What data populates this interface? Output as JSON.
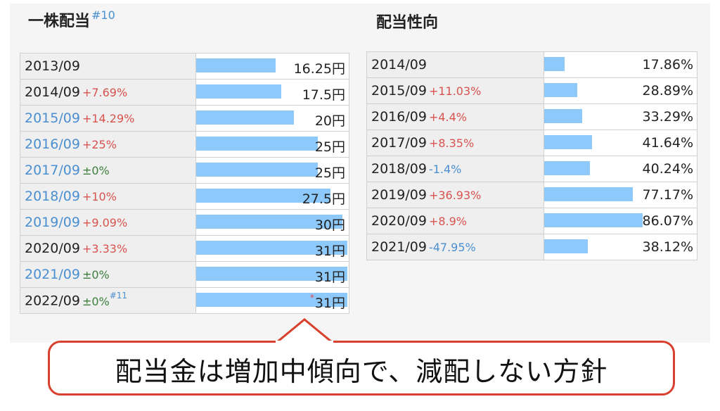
{
  "left": {
    "title": "一株配当",
    "title_note": "#10",
    "rows": [
      {
        "year": "2013/09",
        "change": "",
        "change_type": "",
        "year_link": false,
        "note": "",
        "value": 16.25,
        "value_label": "16.25円",
        "marker": ""
      },
      {
        "year": "2014/09",
        "change": "+7.69%",
        "change_type": "up",
        "year_link": false,
        "note": "",
        "value": 17.5,
        "value_label": "17.5円",
        "marker": ""
      },
      {
        "year": "2015/09",
        "change": "+14.29%",
        "change_type": "up",
        "year_link": true,
        "note": "",
        "value": 20,
        "value_label": "20円",
        "marker": ""
      },
      {
        "year": "2016/09",
        "change": "+25%",
        "change_type": "up",
        "year_link": true,
        "note": "",
        "value": 25,
        "value_label": "25円",
        "marker": ""
      },
      {
        "year": "2017/09",
        "change": "±0%",
        "change_type": "flat",
        "year_link": true,
        "note": "",
        "value": 25,
        "value_label": "25円",
        "marker": ""
      },
      {
        "year": "2018/09",
        "change": "+10%",
        "change_type": "up",
        "year_link": true,
        "note": "",
        "value": 27.5,
        "value_label": "27.5円",
        "marker": ""
      },
      {
        "year": "2019/09",
        "change": "+9.09%",
        "change_type": "up",
        "year_link": true,
        "note": "",
        "value": 30,
        "value_label": "30円",
        "marker": ""
      },
      {
        "year": "2020/09",
        "change": "+3.33%",
        "change_type": "up",
        "year_link": false,
        "note": "",
        "value": 31,
        "value_label": "31円",
        "marker": ""
      },
      {
        "year": "2021/09",
        "change": "±0%",
        "change_type": "flat",
        "year_link": true,
        "note": "",
        "value": 31,
        "value_label": "31円",
        "marker": ""
      },
      {
        "year": "2022/09",
        "change": "±0%",
        "change_type": "flat",
        "year_link": false,
        "note": "#11",
        "value": 31,
        "value_label": "31円",
        "marker": "*"
      }
    ]
  },
  "right": {
    "title": "配当性向",
    "rows": [
      {
        "year": "2014/09",
        "change": "",
        "change_type": "",
        "value": 17.86,
        "value_label": "17.86%"
      },
      {
        "year": "2015/09",
        "change": "+11.03%",
        "change_type": "up",
        "value": 28.89,
        "value_label": "28.89%"
      },
      {
        "year": "2016/09",
        "change": "+4.4%",
        "change_type": "up",
        "value": 33.29,
        "value_label": "33.29%"
      },
      {
        "year": "2017/09",
        "change": "+8.35%",
        "change_type": "up",
        "value": 41.64,
        "value_label": "41.64%"
      },
      {
        "year": "2018/09",
        "change": "-1.4%",
        "change_type": "down",
        "value": 40.24,
        "value_label": "40.24%"
      },
      {
        "year": "2019/09",
        "change": "+36.93%",
        "change_type": "up",
        "value": 77.17,
        "value_label": "77.17%"
      },
      {
        "year": "2020/09",
        "change": "+8.9%",
        "change_type": "up",
        "value": 86.07,
        "value_label": "86.07%"
      },
      {
        "year": "2021/09",
        "change": "-47.95%",
        "change_type": "down",
        "value": 38.12,
        "value_label": "38.12%"
      }
    ]
  },
  "callout": {
    "text": "配当金は増加中傾向で、減配しない方針"
  },
  "colors": {
    "bar": "#8ec9fb",
    "up": "#d9534f",
    "down": "#4a8fd1",
    "flat": "#3c7f3c",
    "callout_border": "#d8412d"
  },
  "chart_data": [
    {
      "type": "bar",
      "title": "一株配当",
      "categories": [
        "2013/09",
        "2014/09",
        "2015/09",
        "2016/09",
        "2017/09",
        "2018/09",
        "2019/09",
        "2020/09",
        "2021/09",
        "2022/09"
      ],
      "values": [
        16.25,
        17.5,
        20,
        25,
        25,
        27.5,
        30,
        31,
        31,
        31
      ],
      "changes": [
        "",
        "+7.69%",
        "+14.29%",
        "+25%",
        "±0%",
        "+10%",
        "+9.09%",
        "+3.33%",
        "±0%",
        "±0%"
      ],
      "xlabel": "",
      "ylabel": "",
      "ylim": [
        0,
        31
      ]
    },
    {
      "type": "bar",
      "title": "配当性向",
      "categories": [
        "2014/09",
        "2015/09",
        "2016/09",
        "2017/09",
        "2018/09",
        "2019/09",
        "2020/09",
        "2021/09"
      ],
      "values": [
        17.86,
        28.89,
        33.29,
        41.64,
        40.24,
        77.17,
        86.07,
        38.12
      ],
      "changes": [
        "",
        "+11.03%",
        "+4.4%",
        "+8.35%",
        "-1.4%",
        "+36.93%",
        "+8.9%",
        "-47.95%"
      ],
      "xlabel": "",
      "ylabel": "",
      "ylim": [
        0,
        86.07
      ]
    }
  ]
}
